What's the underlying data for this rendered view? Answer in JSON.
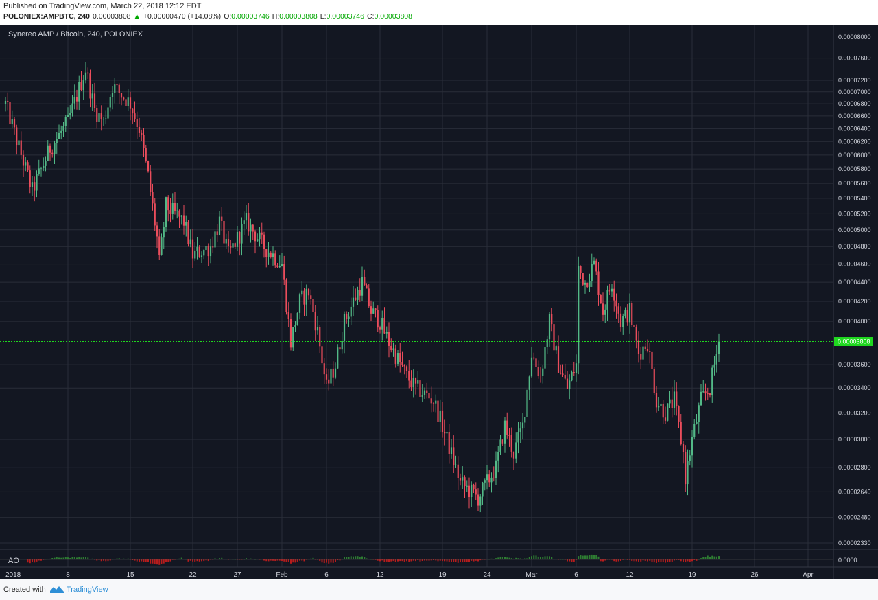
{
  "header": {
    "published": "Published on TradingView.com, March 22, 2018 12:12 EDT",
    "symbol": "POLONIEX:AMPBTC, 240",
    "last": "0.00003808",
    "change_arrow": "▲",
    "change": "+0.00000470 (+14.08%)",
    "open_label": "O:",
    "open": "0.00003746",
    "high_label": "H:",
    "high": "0.00003808",
    "low_label": "L:",
    "low": "0.00003746",
    "close_label": "C:",
    "close": "0.00003808"
  },
  "footer": {
    "created": "Created with",
    "brand": "TradingView"
  },
  "colors": {
    "background": "#131722",
    "grid": "#2a2e39",
    "up": "#53b987",
    "down": "#eb4d5c",
    "price_line": "#1fd81f",
    "axis_text": "#d1d4dc",
    "ao_up": "#2e7d32",
    "ao_down": "#b71c1c"
  },
  "chart_data": {
    "type": "candlestick",
    "title": "Synereo AMP / Bitcoin, 240, POLONIEX",
    "y_scale": "log",
    "ylim": [
      2.33e-05,
      8e-05
    ],
    "y_ticks": [
      "0.00008000",
      "0.00007600",
      "0.00007200",
      "0.00007000",
      "0.00006800",
      "0.00006600",
      "0.00006400",
      "0.00006200",
      "0.00006000",
      "0.00005800",
      "0.00005600",
      "0.00005400",
      "0.00005200",
      "0.00005000",
      "0.00004800",
      "0.00004600",
      "0.00004400",
      "0.00004200",
      "0.00004000",
      "0.00003600",
      "0.00003400",
      "0.00003200",
      "0.00003000",
      "0.00002800",
      "0.00002640",
      "0.00002480",
      "0.00002330"
    ],
    "current_price": "0.00003808",
    "x_ticks": [
      "2018",
      "8",
      "15",
      "22",
      "27",
      "Feb",
      "6",
      "12",
      "19",
      "24",
      "Mar",
      "6",
      "12",
      "19",
      "26",
      "Apr"
    ],
    "price_path": [
      {
        "date": "2018-01-01",
        "price": 6.8e-05
      },
      {
        "date": "2018-01-04",
        "price": 5.5e-05
      },
      {
        "date": "2018-01-06",
        "price": 6.1e-05
      },
      {
        "date": "2018-01-08",
        "price": 6.5e-05
      },
      {
        "date": "2018-01-10",
        "price": 7.4e-05
      },
      {
        "date": "2018-01-11",
        "price": 6.7e-05
      },
      {
        "date": "2018-01-12",
        "price": 6.5e-05
      },
      {
        "date": "2018-01-13",
        "price": 7.1e-05
      },
      {
        "date": "2018-01-15",
        "price": 6.8e-05
      },
      {
        "date": "2018-01-16",
        "price": 6.4e-05
      },
      {
        "date": "2018-01-17",
        "price": 5.7e-05
      },
      {
        "date": "2018-01-18",
        "price": 4.9e-05
      },
      {
        "date": "2018-01-18",
        "price": 4.4e-05
      },
      {
        "date": "2018-01-19",
        "price": 5.3e-05
      },
      {
        "date": "2018-01-21",
        "price": 5.1e-05
      },
      {
        "date": "2018-01-22",
        "price": 4.7e-05
      },
      {
        "date": "2018-01-24",
        "price": 4.8e-05
      },
      {
        "date": "2018-01-25",
        "price": 5.1e-05
      },
      {
        "date": "2018-01-26",
        "price": 4.7e-05
      },
      {
        "date": "2018-01-28",
        "price": 5.1e-05
      },
      {
        "date": "2018-01-30",
        "price": 4.8e-05
      },
      {
        "date": "2018-01-31",
        "price": 4.7e-05
      },
      {
        "date": "2018-02-01",
        "price": 4.6e-05
      },
      {
        "date": "2018-02-02",
        "price": 3.8e-05
      },
      {
        "date": "2018-02-03",
        "price": 4.2e-05
      },
      {
        "date": "2018-02-04",
        "price": 4.3e-05
      },
      {
        "date": "2018-02-05",
        "price": 3.9e-05
      },
      {
        "date": "2018-02-06",
        "price": 3.4e-05
      },
      {
        "date": "2018-02-07",
        "price": 3.6e-05
      },
      {
        "date": "2018-02-08",
        "price": 4e-05
      },
      {
        "date": "2018-02-09",
        "price": 4.2e-05
      },
      {
        "date": "2018-02-10",
        "price": 4.4e-05
      },
      {
        "date": "2018-02-11",
        "price": 4.1e-05
      },
      {
        "date": "2018-02-12",
        "price": 4e-05
      },
      {
        "date": "2018-02-13",
        "price": 3.8e-05
      },
      {
        "date": "2018-02-15",
        "price": 3.5e-05
      },
      {
        "date": "2018-02-16",
        "price": 3.4e-05
      },
      {
        "date": "2018-02-18",
        "price": 3.3e-05
      },
      {
        "date": "2018-02-19",
        "price": 3.1e-05
      },
      {
        "date": "2018-02-21",
        "price": 2.7e-05
      },
      {
        "date": "2018-02-23",
        "price": 2.6e-05
      },
      {
        "date": "2018-02-24",
        "price": 2.7e-05
      },
      {
        "date": "2018-02-25",
        "price": 2.8e-05
      },
      {
        "date": "2018-02-26",
        "price": 3.1e-05
      },
      {
        "date": "2018-02-27",
        "price": 2.9e-05
      },
      {
        "date": "2018-02-28",
        "price": 3.1e-05
      },
      {
        "date": "2018-03-01",
        "price": 3.7e-05
      },
      {
        "date": "2018-03-02",
        "price": 3.5e-05
      },
      {
        "date": "2018-03-03",
        "price": 4e-05
      },
      {
        "date": "2018-03-04",
        "price": 3.6e-05
      },
      {
        "date": "2018-03-05",
        "price": 3.4e-05
      },
      {
        "date": "2018-03-06",
        "price": 3.6e-05
      },
      {
        "date": "2018-03-06",
        "price": 4.6e-05
      },
      {
        "date": "2018-03-07",
        "price": 4.4e-05
      },
      {
        "date": "2018-03-08",
        "price": 4.6e-05
      },
      {
        "date": "2018-03-09",
        "price": 4.1e-05
      },
      {
        "date": "2018-03-10",
        "price": 4.4e-05
      },
      {
        "date": "2018-03-11",
        "price": 4e-05
      },
      {
        "date": "2018-03-12",
        "price": 4.1e-05
      },
      {
        "date": "2018-03-13",
        "price": 3.7e-05
      },
      {
        "date": "2018-03-14",
        "price": 3.8e-05
      },
      {
        "date": "2018-03-15",
        "price": 3.3e-05
      },
      {
        "date": "2018-03-16",
        "price": 3.2e-05
      },
      {
        "date": "2018-03-17",
        "price": 3.3e-05
      },
      {
        "date": "2018-03-18",
        "price": 2.9e-05
      },
      {
        "date": "2018-03-18",
        "price": 2.65e-05
      },
      {
        "date": "2018-03-19",
        "price": 3e-05
      },
      {
        "date": "2018-03-20",
        "price": 3.3e-05
      },
      {
        "date": "2018-03-21",
        "price": 3.4e-05
      },
      {
        "date": "2018-03-22",
        "price": 3.808e-05
      }
    ],
    "indicator": {
      "name": "AO",
      "value": "0.0000"
    }
  }
}
